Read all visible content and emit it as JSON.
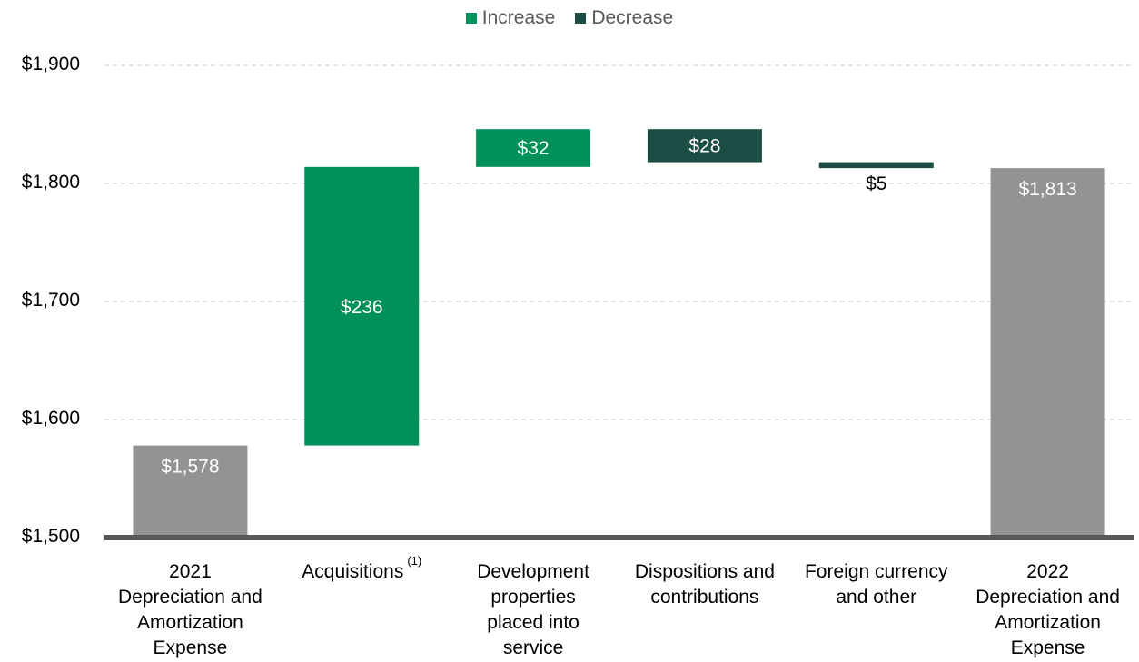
{
  "legend": {
    "increase_label": "Increase",
    "decrease_label": "Decrease"
  },
  "colors": {
    "increase": "#00915A",
    "decrease": "#1B4D44",
    "total": "#939393",
    "axis": "#595959",
    "grid": "#C8C8C8"
  },
  "chart_data": {
    "type": "waterfall",
    "ylim": [
      1500,
      1900
    ],
    "yticks": [
      "$1,500",
      "$1,600",
      "$1,700",
      "$1,800",
      "$1,900"
    ],
    "ytick_values": [
      1500,
      1600,
      1700,
      1800,
      1900
    ],
    "grid": true,
    "legend_position": "top-center",
    "steps": [
      {
        "category": "2021\nDepreciation and\nAmortization\nExpense",
        "kind": "total",
        "start": 1500,
        "end": 1578,
        "label": "$1,578"
      },
      {
        "category": "Acquisitions",
        "footnote": "(1)",
        "kind": "increase",
        "start": 1578,
        "end": 1814,
        "label": "$236"
      },
      {
        "category": "Development\nproperties\nplaced into\nservice",
        "kind": "increase",
        "start": 1814,
        "end": 1846,
        "label": "$32"
      },
      {
        "category": "Dispositions and\ncontributions",
        "kind": "decrease",
        "start": 1846,
        "end": 1818,
        "label": "$28"
      },
      {
        "category": "Foreign currency\nand other",
        "kind": "decrease",
        "start": 1818,
        "end": 1813,
        "label": "$5"
      },
      {
        "category": "2022\nDepreciation and\nAmortization\nExpense",
        "kind": "total",
        "start": 1500,
        "end": 1813,
        "label": "$1,813"
      }
    ]
  }
}
